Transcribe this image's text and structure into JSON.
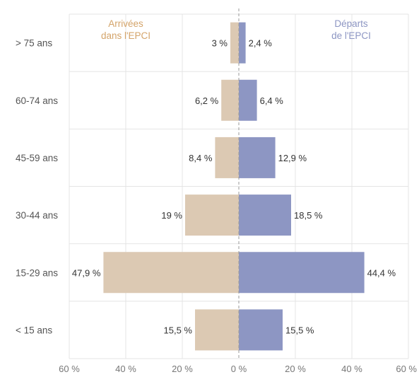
{
  "chart_data": {
    "type": "bar",
    "orientation": "horizontal-butterfly",
    "categories": [
      "> 75 ans",
      "60-74 ans",
      "45-59 ans",
      "30-44 ans",
      "15-29 ans",
      "< 15 ans"
    ],
    "series": [
      {
        "name": "Arrivées dans l'EPCI",
        "side": "left",
        "color": "#dcc9b3",
        "label_color": "#d4a46a",
        "values": [
          3,
          6.2,
          8.4,
          19,
          47.9,
          15.5
        ],
        "value_labels": [
          "3 %",
          "6,2 %",
          "8,4 %",
          "19 %",
          "47,9 %",
          "15,5 %"
        ]
      },
      {
        "name": "Départs de l'EPCI",
        "side": "right",
        "color": "#8d96c3",
        "label_color": "#8d96c3",
        "values": [
          2.4,
          6.4,
          12.9,
          18.5,
          44.4,
          15.5
        ],
        "value_labels": [
          "2,4 %",
          "6,4 %",
          "12,9 %",
          "18,5 %",
          "44,4 %",
          "15,5 %"
        ]
      }
    ],
    "legend": {
      "left_lines": [
        "Arrivées",
        "dans l'EPCI"
      ],
      "right_lines": [
        "Départs",
        "de l'EPCI"
      ]
    },
    "x_ticks": [
      "60 %",
      "40 %",
      "20 %",
      "0 %",
      "20 %",
      "40 %",
      "60 %"
    ],
    "xlim": [
      -60,
      60
    ],
    "grid": true
  }
}
